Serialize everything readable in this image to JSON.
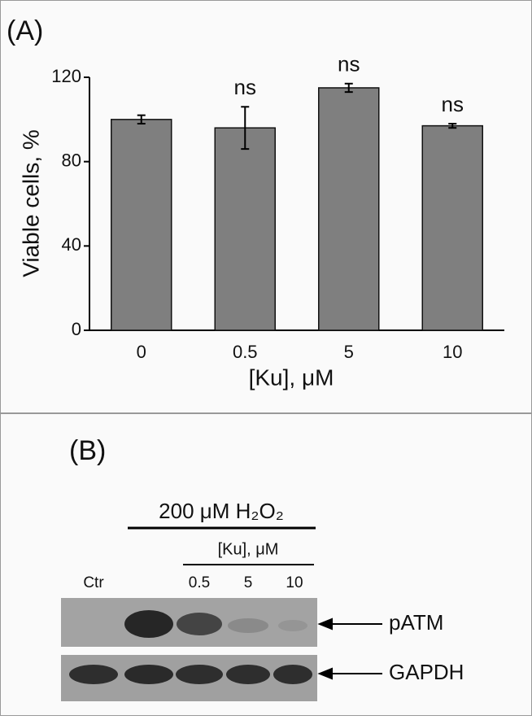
{
  "chart_data": {
    "type": "bar",
    "panel_label": "(A)",
    "ylabel": "Viable cells, %",
    "xlabel": "[Ku], μM",
    "categories": [
      "0",
      "0.5",
      "5",
      "10"
    ],
    "values": [
      100,
      96,
      115,
      97
    ],
    "errors": [
      2,
      10,
      2,
      1
    ],
    "value_annotations": [
      null,
      "ns",
      "ns",
      "ns"
    ],
    "color": "#7f7f7f",
    "ylim": [
      0,
      120
    ],
    "yticks": [
      0,
      40,
      80,
      120
    ]
  },
  "panel_b": {
    "label": "(B)",
    "treatment": "200 μM H₂O₂",
    "dose_label": "[Ku], μM",
    "lanes": [
      "Ctr",
      "0.5",
      "5",
      "10"
    ],
    "bands": [
      "pATM",
      "GAPDH"
    ]
  }
}
